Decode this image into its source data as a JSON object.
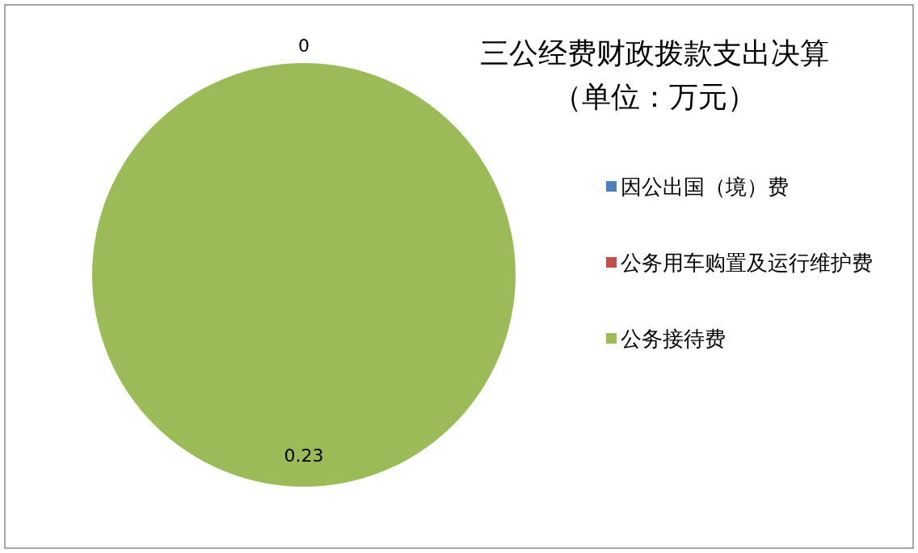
{
  "chart_data": {
    "type": "pie",
    "title": "三公经费财政拨款支出决算",
    "subtitle": "（单位：万元）",
    "categories": [
      "因公出国（境）费",
      "公务用车购置及运行维护费",
      "公务接待费"
    ],
    "values": [
      0,
      0,
      0.23
    ],
    "colors": [
      "#4f81bd",
      "#c0504d",
      "#9bbb59"
    ],
    "value_labels": [
      "0",
      null,
      "0.23"
    ],
    "legend": "right"
  }
}
